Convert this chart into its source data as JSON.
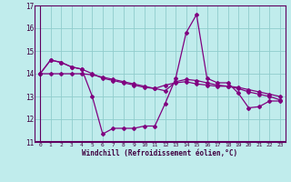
{
  "xlabel": "Windchill (Refroidissement éolien,°C)",
  "background_color": "#c0ecec",
  "line_color": "#800080",
  "grid_color": "#90cccc",
  "axis_line_color": "#600060",
  "xlim": [
    -0.5,
    23.5
  ],
  "ylim": [
    11,
    17
  ],
  "yticks": [
    11,
    12,
    13,
    14,
    15,
    16,
    17
  ],
  "xticks": [
    0,
    1,
    2,
    3,
    4,
    5,
    6,
    7,
    8,
    9,
    10,
    11,
    12,
    13,
    14,
    15,
    16,
    17,
    18,
    19,
    20,
    21,
    22,
    23
  ],
  "series": [
    [
      14.0,
      14.6,
      14.5,
      14.3,
      14.2,
      13.0,
      11.35,
      11.6,
      11.6,
      11.6,
      11.7,
      11.7,
      12.7,
      13.8,
      15.8,
      16.6,
      13.8,
      13.6,
      13.6,
      13.15,
      12.5,
      12.55,
      12.8,
      12.8
    ],
    [
      14.0,
      14.6,
      14.5,
      14.3,
      14.2,
      14.0,
      13.8,
      13.7,
      13.6,
      13.5,
      13.4,
      13.35,
      13.5,
      13.6,
      13.65,
      13.55,
      13.5,
      13.45,
      13.45,
      13.35,
      13.2,
      13.1,
      13.0,
      12.85
    ],
    [
      14.0,
      14.0,
      14.0,
      14.0,
      14.0,
      13.95,
      13.85,
      13.75,
      13.65,
      13.55,
      13.45,
      13.35,
      13.25,
      13.65,
      13.75,
      13.7,
      13.6,
      13.5,
      13.45,
      13.4,
      13.3,
      13.2,
      13.1,
      13.0
    ]
  ]
}
